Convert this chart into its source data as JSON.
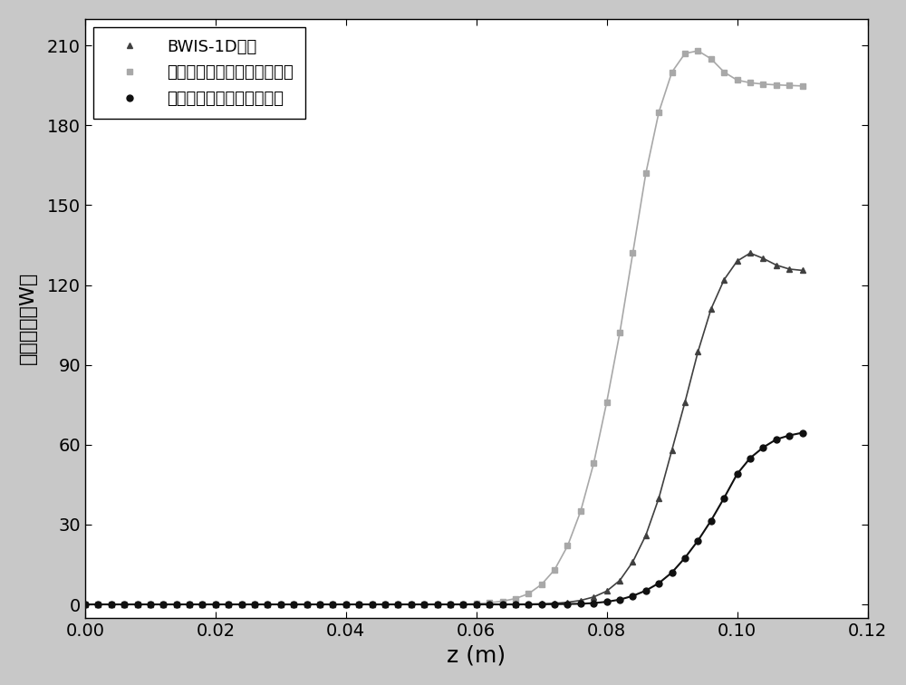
{
  "xlabel": "z (m)",
  "ylabel": "输出功率（W）",
  "xlim": [
    0.0,
    0.12
  ],
  "ylim": [
    -5,
    220
  ],
  "yticks": [
    0,
    30,
    60,
    90,
    120,
    150,
    180,
    210
  ],
  "xticks": [
    0.0,
    0.02,
    0.04,
    0.06,
    0.08,
    0.1,
    0.12
  ],
  "fig_facecolor": "#c8c8c8",
  "ax_facecolor": "#ffffff",
  "line1_label": "BWIS-1D代码",
  "line1_color": "#404040",
  "line1_marker": "^",
  "line2_label": "本发明的欧拉非线性理论模型",
  "line2_color": "#a8a8a8",
  "line2_marker": "s",
  "line3_label": "传统的欧拉非线性理论模型",
  "line3_color": "#101010",
  "line3_marker": "o",
  "line1_z": [
    0.0,
    0.002,
    0.004,
    0.006,
    0.008,
    0.01,
    0.012,
    0.014,
    0.016,
    0.018,
    0.02,
    0.022,
    0.024,
    0.026,
    0.028,
    0.03,
    0.032,
    0.034,
    0.036,
    0.038,
    0.04,
    0.042,
    0.044,
    0.046,
    0.048,
    0.05,
    0.052,
    0.054,
    0.056,
    0.058,
    0.06,
    0.062,
    0.064,
    0.066,
    0.068,
    0.07,
    0.072,
    0.074,
    0.076,
    0.078,
    0.08,
    0.082,
    0.084,
    0.086,
    0.088,
    0.09,
    0.092,
    0.094,
    0.096,
    0.098,
    0.1,
    0.102,
    0.104,
    0.106,
    0.108,
    0.11
  ],
  "line1_y": [
    0.05,
    0.05,
    0.05,
    0.05,
    0.05,
    0.05,
    0.05,
    0.05,
    0.05,
    0.05,
    0.05,
    0.05,
    0.05,
    0.05,
    0.05,
    0.05,
    0.05,
    0.05,
    0.05,
    0.05,
    0.05,
    0.05,
    0.05,
    0.05,
    0.05,
    0.05,
    0.05,
    0.05,
    0.05,
    0.05,
    0.05,
    0.05,
    0.05,
    0.08,
    0.12,
    0.2,
    0.4,
    0.8,
    1.5,
    2.8,
    5.0,
    9.0,
    16.0,
    26.0,
    40.0,
    58.0,
    76.0,
    95.0,
    111.0,
    122.0,
    129.0,
    132.0,
    130.0,
    127.5,
    126.0,
    125.5
  ],
  "line2_z": [
    0.0,
    0.002,
    0.004,
    0.006,
    0.008,
    0.01,
    0.012,
    0.014,
    0.016,
    0.018,
    0.02,
    0.022,
    0.024,
    0.026,
    0.028,
    0.03,
    0.032,
    0.034,
    0.036,
    0.038,
    0.04,
    0.042,
    0.044,
    0.046,
    0.048,
    0.05,
    0.052,
    0.054,
    0.056,
    0.058,
    0.06,
    0.062,
    0.064,
    0.066,
    0.068,
    0.07,
    0.072,
    0.074,
    0.076,
    0.078,
    0.08,
    0.082,
    0.084,
    0.086,
    0.088,
    0.09,
    0.092,
    0.094,
    0.096,
    0.098,
    0.1,
    0.102,
    0.104,
    0.106,
    0.108,
    0.11
  ],
  "line2_y": [
    0.05,
    0.05,
    0.05,
    0.05,
    0.05,
    0.05,
    0.05,
    0.05,
    0.05,
    0.05,
    0.05,
    0.05,
    0.05,
    0.05,
    0.05,
    0.05,
    0.05,
    0.05,
    0.05,
    0.05,
    0.05,
    0.05,
    0.05,
    0.05,
    0.05,
    0.05,
    0.05,
    0.05,
    0.08,
    0.15,
    0.3,
    0.6,
    1.2,
    2.2,
    4.0,
    7.5,
    13.0,
    22.0,
    35.0,
    53.0,
    76.0,
    102.0,
    132.0,
    162.0,
    185.0,
    200.0,
    207.0,
    208.0,
    205.0,
    200.0,
    197.0,
    196.0,
    195.5,
    195.2,
    195.0,
    194.8
  ],
  "line3_z": [
    0.0,
    0.002,
    0.004,
    0.006,
    0.008,
    0.01,
    0.012,
    0.014,
    0.016,
    0.018,
    0.02,
    0.022,
    0.024,
    0.026,
    0.028,
    0.03,
    0.032,
    0.034,
    0.036,
    0.038,
    0.04,
    0.042,
    0.044,
    0.046,
    0.048,
    0.05,
    0.052,
    0.054,
    0.056,
    0.058,
    0.06,
    0.062,
    0.064,
    0.066,
    0.068,
    0.07,
    0.072,
    0.074,
    0.076,
    0.078,
    0.08,
    0.082,
    0.084,
    0.086,
    0.088,
    0.09,
    0.092,
    0.094,
    0.096,
    0.098,
    0.1,
    0.102,
    0.104,
    0.106,
    0.108,
    0.11
  ],
  "line3_y": [
    0.0,
    0.0,
    0.0,
    0.0,
    0.0,
    0.0,
    0.0,
    0.0,
    0.0,
    0.0,
    0.0,
    0.0,
    0.0,
    0.0,
    0.0,
    0.0,
    0.0,
    0.0,
    0.0,
    0.0,
    0.0,
    0.0,
    0.0,
    0.0,
    0.0,
    0.0,
    0.0,
    0.0,
    0.0,
    0.0,
    0.0,
    0.0,
    0.0,
    0.0,
    0.0,
    0.05,
    0.1,
    0.15,
    0.25,
    0.5,
    1.0,
    1.8,
    3.2,
    5.2,
    8.0,
    12.0,
    17.5,
    24.0,
    31.5,
    40.0,
    49.0,
    55.0,
    59.0,
    62.0,
    63.5,
    64.5
  ]
}
